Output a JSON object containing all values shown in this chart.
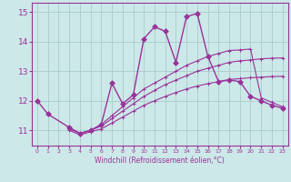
{
  "xlabel": "Windchill (Refroidissement éolien,°C)",
  "bg_color": "#cce8e8",
  "grid_color": "#aacccc",
  "line_color": "#993399",
  "x_hours": [
    0,
    1,
    2,
    3,
    4,
    5,
    6,
    7,
    8,
    9,
    10,
    11,
    12,
    13,
    14,
    15,
    16,
    17,
    18,
    19,
    20,
    21,
    22,
    23
  ],
  "s_main": [
    12.0,
    11.55,
    null,
    11.1,
    10.9,
    11.0,
    11.2,
    12.6,
    11.9,
    12.2,
    14.1,
    14.5,
    14.35,
    13.3,
    14.85,
    14.95,
    13.5,
    12.65,
    12.7,
    12.65,
    12.15,
    12.0,
    11.85,
    11.75
  ],
  "s_b1": [
    null,
    null,
    null,
    11.1,
    10.9,
    11.0,
    11.2,
    11.5,
    11.8,
    12.1,
    12.4,
    12.6,
    12.8,
    13.0,
    13.2,
    13.35,
    13.5,
    13.6,
    13.7,
    13.72,
    13.75,
    12.1,
    11.95,
    11.8
  ],
  "s_b2": [
    null,
    null,
    null,
    11.05,
    10.9,
    11.0,
    11.15,
    11.4,
    11.65,
    11.9,
    12.15,
    12.35,
    12.55,
    12.7,
    12.85,
    13.0,
    13.1,
    13.2,
    13.3,
    13.35,
    13.38,
    13.42,
    13.44,
    13.45
  ],
  "s_b3": [
    null,
    null,
    null,
    11.0,
    10.85,
    10.95,
    11.05,
    11.25,
    11.45,
    11.65,
    11.85,
    12.0,
    12.15,
    12.28,
    12.4,
    12.5,
    12.58,
    12.65,
    12.72,
    12.75,
    12.78,
    12.8,
    12.82,
    12.83
  ],
  "ylim": [
    10.5,
    15.3
  ],
  "yticks": [
    11,
    12,
    13,
    14,
    15
  ],
  "xlim": [
    -0.5,
    23.5
  ]
}
